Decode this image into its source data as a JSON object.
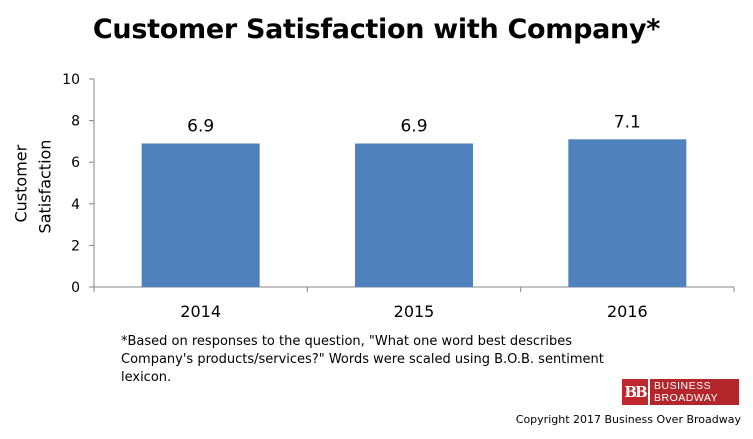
{
  "chart_data": {
    "type": "bar",
    "title": "Customer Satisfaction with Company*",
    "ylabel_lines": [
      "Customer",
      "Satisfaction"
    ],
    "xlabel": "",
    "categories": [
      "2014",
      "2015",
      "2016"
    ],
    "values": [
      6.9,
      6.9,
      7.1
    ],
    "data_labels": [
      "6.9",
      "6.9",
      "7.1"
    ],
    "ylim": [
      0,
      10
    ],
    "yticks": [
      "0",
      "2",
      "4",
      "6",
      "8",
      "10"
    ],
    "grid": false,
    "legend": "none",
    "bar_color": "#4f81bd"
  },
  "footnote": "*Based on responses to the question, \"What one word best describes Company's products/services?\" Words were scaled using B.O.B. sentiment lexicon.",
  "logo": {
    "mark": "BB",
    "line1": "BUSINESS",
    "line2": "BROADWAY"
  },
  "copyright": "Copyright 2017 Business Over Broadway"
}
